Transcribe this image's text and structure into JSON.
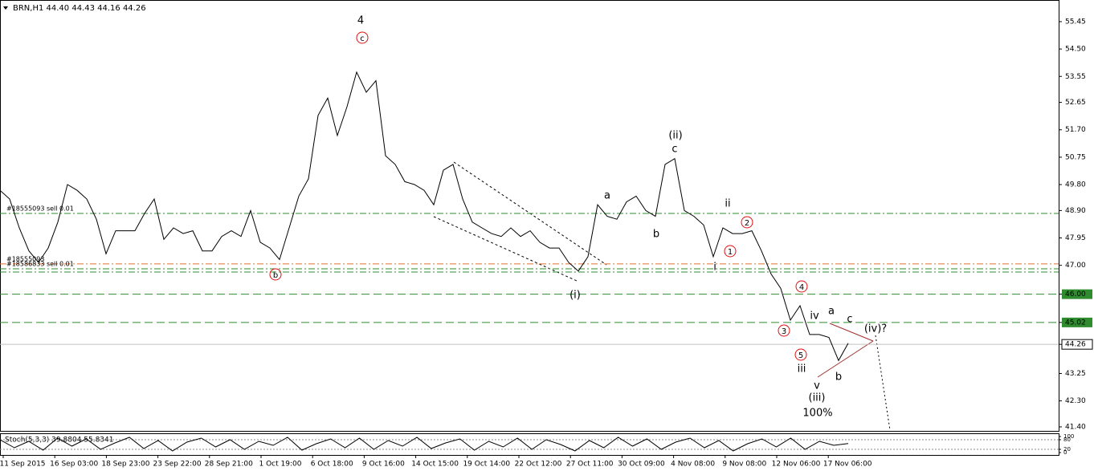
{
  "chart_data": [
    {
      "type": "line",
      "title": "BRN,H1  44.40 44.43 44.16 44.26",
      "x_labels": [
        "11 Sep 2015",
        "16 Sep 03:00",
        "18 Sep 23:00",
        "23 Sep 22:00",
        "28 Sep 21:00",
        "1 Oct 19:00",
        "6 Oct 18:00",
        "9 Oct 16:00",
        "14 Oct 15:00",
        "19 Oct 14:00",
        "22 Oct 12:00",
        "27 Oct 11:00",
        "30 Oct 09:00",
        "4 Nov 08:00",
        "9 Nov 08:00",
        "12 Nov 06:00",
        "17 Nov 06:00"
      ],
      "color": "#000000",
      "values": [
        49.6,
        49.3,
        48.3,
        47.5,
        47.1,
        47.6,
        48.5,
        49.8,
        49.6,
        49.3,
        48.6,
        47.4,
        48.2,
        48.2,
        48.2,
        48.8,
        49.3,
        47.9,
        48.3,
        48.1,
        48.2,
        47.5,
        47.5,
        48.0,
        48.2,
        48.0,
        48.9,
        47.8,
        47.6,
        47.2,
        48.3,
        49.4,
        50.0,
        52.2,
        52.8,
        51.5,
        52.5,
        53.7,
        53.0,
        53.4,
        50.8,
        50.5,
        49.9,
        49.8,
        49.6,
        49.1,
        50.3,
        50.5,
        49.3,
        48.5,
        48.3,
        48.1,
        48.0,
        48.3,
        48.0,
        48.2,
        47.8,
        47.6,
        47.6,
        47.1,
        46.8,
        47.3,
        49.1,
        48.7,
        48.6,
        49.2,
        49.4,
        48.9,
        48.7,
        50.5,
        50.7,
        48.9,
        48.7,
        48.4,
        47.3,
        48.3,
        48.1,
        48.1,
        48.2,
        47.5,
        46.7,
        46.2,
        45.1,
        45.6,
        44.6,
        44.6,
        44.5,
        43.7,
        44.3
      ],
      "ylim": [
        41.26,
        56.2
      ],
      "yticks": [
        55.45,
        {
          "value": 54.5,
          "label": "54.50"
        },
        53.55,
        52.65,
        {
          "value": 51.7,
          "label": "51.70"
        },
        50.75,
        {
          "value": 49.8,
          "label": "49.80"
        },
        {
          "value": 48.9,
          "label": "48.90"
        },
        47.95,
        {
          "value": 47.0,
          "label": "47.00"
        },
        {
          "value": 46.0,
          "label": "46.00"
        },
        45.02,
        44.26,
        43.25,
        {
          "value": 42.3,
          "label": "42.30"
        },
        {
          "value": 41.4,
          "label": "41.40"
        }
      ],
      "hlines": [
        {
          "value": 48.8,
          "color": "#2e8b2e",
          "style": "dashdot",
          "label": "#18555093 sell 0.01"
        },
        {
          "value": 47.05,
          "color": "#e07030",
          "style": "dashdot",
          "label": "#18555093"
        },
        {
          "value": 46.88,
          "color": "#2e8b2e",
          "style": "dashdot",
          "label": "#18586833 sell 0.01"
        },
        {
          "value": 46.77,
          "color": "#2e8b2e",
          "style": "dashdot"
        },
        {
          "value": 46.0,
          "color": "#2e8b2e",
          "style": "dashed"
        },
        {
          "value": 45.02,
          "color": "#2e8b2e",
          "style": "dashed"
        },
        {
          "value": 44.26,
          "color": "#c0c0c0",
          "style": "solid"
        }
      ],
      "annotations": [
        {
          "text": "4",
          "color": "#1010d0"
        },
        {
          "text": "c",
          "color": "#e01010",
          "circled": true
        },
        {
          "text": "b",
          "color": "#e01010",
          "circled": true
        },
        {
          "text": "(i)",
          "color": "#1a8a1a"
        },
        {
          "text": "(ii)",
          "color": "#1a8a1a"
        },
        {
          "text": "c",
          "color": "#1010d0"
        },
        {
          "text": "a",
          "color": "#1010d0"
        },
        {
          "text": "b",
          "color": "#1010d0"
        },
        {
          "text": "ii",
          "color": "#1010d0"
        },
        {
          "text": "i",
          "color": "#1010d0"
        },
        {
          "text": "1",
          "color": "#e01010",
          "circled": true
        },
        {
          "text": "2",
          "color": "#e01010",
          "circled": true
        },
        {
          "text": "3",
          "color": "#e01010",
          "circled": true
        },
        {
          "text": "4",
          "color": "#e01010",
          "circled": true
        },
        {
          "text": "5",
          "color": "#e01010",
          "circled": true
        },
        {
          "text": "iii",
          "color": "#1010d0"
        },
        {
          "text": "iv",
          "color": "#1010d0"
        },
        {
          "text": "v",
          "color": "#1010d0"
        },
        {
          "text": "a",
          "color": "#1010d0"
        },
        {
          "text": "b",
          "color": "#1010d0"
        },
        {
          "text": "c",
          "color": "#1010d0"
        },
        {
          "text": "(iii)",
          "color": "#1a8a1a"
        },
        {
          "text": "100%",
          "color": "#909090"
        },
        {
          "text": "(iv)?",
          "color": "#1a8a1a"
        }
      ]
    },
    {
      "type": "line",
      "title": "Stoch(5,3,3) 39.8804 55.8341",
      "color": "#000000",
      "values": [
        80,
        30,
        70,
        15,
        90,
        40,
        85,
        20,
        60,
        95,
        25,
        75,
        10,
        65,
        90,
        35,
        80,
        20,
        70,
        45,
        95,
        15,
        55,
        85,
        30,
        90,
        20,
        75,
        40,
        95,
        25,
        60,
        85,
        15,
        70,
        35,
        90,
        20,
        80,
        50,
        10,
        75,
        30,
        95,
        40,
        85,
        20,
        65,
        90,
        30,
        75,
        10,
        55,
        85,
        35,
        90,
        20,
        70,
        45,
        56
      ],
      "ylim": [
        -15,
        115
      ],
      "yticks": [
        0,
        20,
        80,
        100
      ],
      "levels": [
        20,
        80
      ]
    }
  ]
}
